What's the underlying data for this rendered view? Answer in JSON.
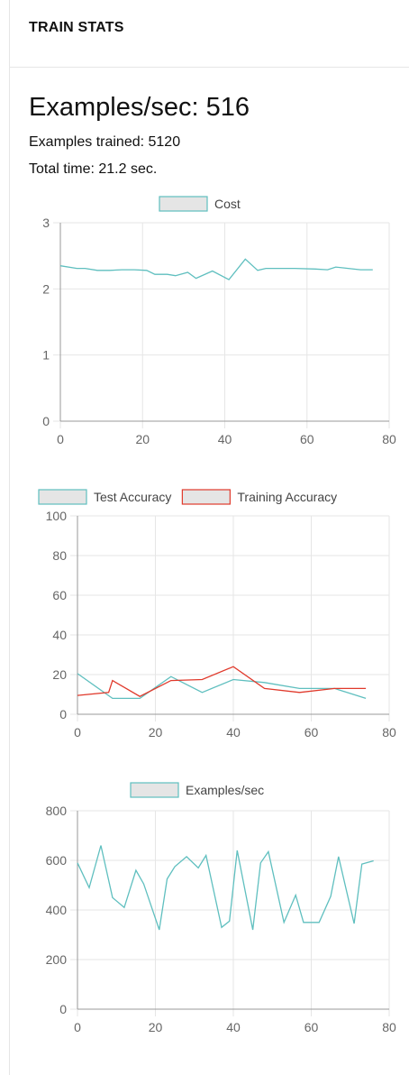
{
  "header": {
    "title": "TRAIN STATS"
  },
  "stats": {
    "examples_per_sec": "Examples/sec: 516",
    "examples_trained": "Examples trained: 5120",
    "total_time": "Total time: 21.2 sec."
  },
  "colors": {
    "teal": "#5fbfbf",
    "red": "#e0392b",
    "legend_fill": "#e5e5e5",
    "grid": "#e6e6e6",
    "axis": "#999999"
  },
  "chart_data": [
    {
      "type": "line",
      "legend_position": "top",
      "xlim": [
        0,
        80
      ],
      "ylim": [
        0,
        3
      ],
      "xticks": [
        0,
        20,
        40,
        60,
        80
      ],
      "yticks": [
        0,
        1,
        2,
        3
      ],
      "grid": true,
      "series": [
        {
          "name": "Cost",
          "color": "#5fbfbf",
          "points": [
            [
              0,
              2.35
            ],
            [
              4,
              2.31
            ],
            [
              6,
              2.31
            ],
            [
              9,
              2.28
            ],
            [
              12,
              2.28
            ],
            [
              15,
              2.29
            ],
            [
              18,
              2.29
            ],
            [
              21,
              2.28
            ],
            [
              23,
              2.22
            ],
            [
              26,
              2.22
            ],
            [
              28,
              2.2
            ],
            [
              31,
              2.25
            ],
            [
              33,
              2.16
            ],
            [
              37,
              2.27
            ],
            [
              41,
              2.14
            ],
            [
              45,
              2.45
            ],
            [
              48,
              2.28
            ],
            [
              50,
              2.31
            ],
            [
              57,
              2.31
            ],
            [
              62,
              2.3
            ],
            [
              65,
              2.29
            ],
            [
              67,
              2.33
            ],
            [
              70,
              2.31
            ],
            [
              73,
              2.29
            ],
            [
              76,
              2.29
            ]
          ]
        }
      ]
    },
    {
      "type": "line",
      "legend_position": "top",
      "xlim": [
        0,
        80
      ],
      "ylim": [
        0,
        100
      ],
      "xticks": [
        0,
        20,
        40,
        60,
        80
      ],
      "yticks": [
        0,
        20,
        40,
        60,
        80,
        100
      ],
      "grid": true,
      "series": [
        {
          "name": "Test Accuracy",
          "color": "#5fbfbf",
          "points": [
            [
              0,
              20.5
            ],
            [
              9,
              8
            ],
            [
              16,
              8
            ],
            [
              24,
              19
            ],
            [
              32,
              11
            ],
            [
              40,
              17.5
            ],
            [
              48,
              16
            ],
            [
              57,
              13
            ],
            [
              66,
              13
            ],
            [
              74,
              8
            ]
          ]
        },
        {
          "name": "Training Accuracy",
          "color": "#e0392b",
          "points": [
            [
              0,
              9.5
            ],
            [
              8,
              11
            ],
            [
              9,
              17
            ],
            [
              16,
              9
            ],
            [
              24,
              17
            ],
            [
              32,
              17.5
            ],
            [
              40,
              24
            ],
            [
              48,
              13
            ],
            [
              57,
              11
            ],
            [
              66,
              13
            ],
            [
              74,
              13
            ]
          ]
        }
      ]
    },
    {
      "type": "line",
      "legend_position": "top",
      "xlim": [
        0,
        80
      ],
      "ylim": [
        0,
        800
      ],
      "xticks": [
        0,
        20,
        40,
        60,
        80
      ],
      "yticks": [
        0,
        200,
        400,
        600,
        800
      ],
      "grid": true,
      "series": [
        {
          "name": "Examples/sec",
          "color": "#5fbfbf",
          "points": [
            [
              0,
              590
            ],
            [
              3,
              490
            ],
            [
              6,
              660
            ],
            [
              9,
              450
            ],
            [
              12,
              410
            ],
            [
              15,
              560
            ],
            [
              17,
              505
            ],
            [
              21,
              320
            ],
            [
              23,
              525
            ],
            [
              25,
              575
            ],
            [
              28,
              615
            ],
            [
              31,
              570
            ],
            [
              33,
              620
            ],
            [
              37,
              330
            ],
            [
              39,
              355
            ],
            [
              41,
              640
            ],
            [
              45,
              320
            ],
            [
              47,
              590
            ],
            [
              49,
              635
            ],
            [
              53,
              350
            ],
            [
              56,
              460
            ],
            [
              58,
              350
            ],
            [
              62,
              350
            ],
            [
              65,
              455
            ],
            [
              67,
              615
            ],
            [
              71,
              345
            ],
            [
              73,
              585
            ],
            [
              76,
              598
            ]
          ]
        }
      ]
    }
  ]
}
